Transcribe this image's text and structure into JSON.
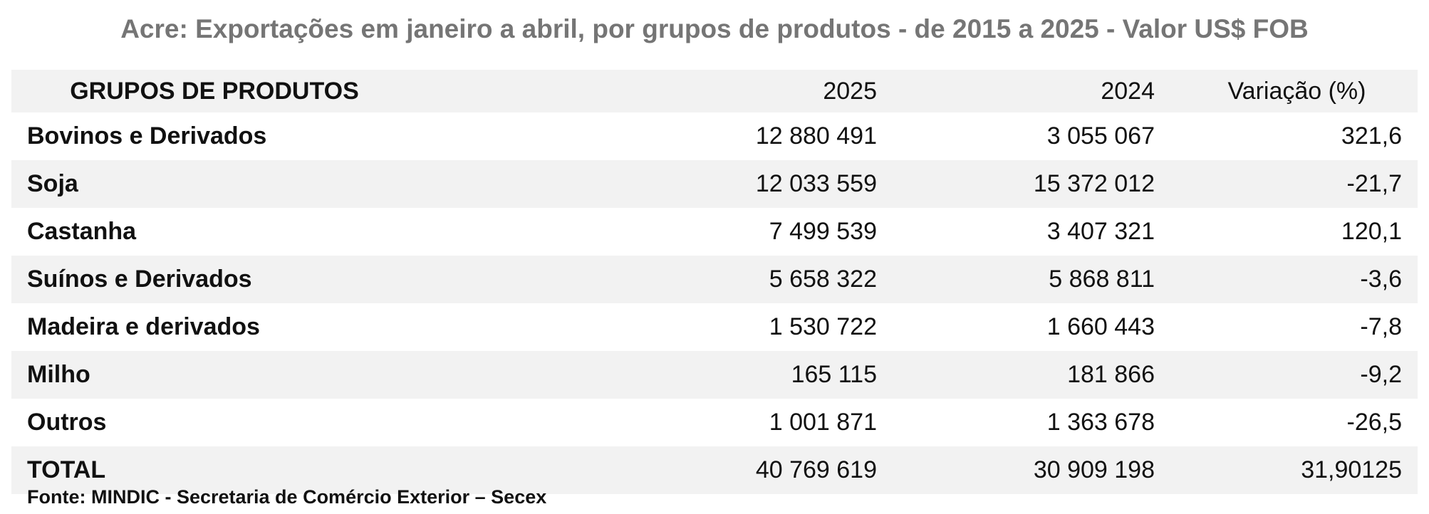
{
  "title": "Acre: Exportações em janeiro a abril, por grupos de produtos - de 2015 a 2025 - Valor US$ FOB",
  "table": {
    "headers": [
      "GRUPOS DE PRODUTOS",
      "2025",
      "2024",
      "Variação (%)"
    ],
    "rows": [
      [
        "Bovinos e Derivados",
        "12 880 491",
        "3 055 067",
        "321,6"
      ],
      [
        "Soja",
        "12 033 559",
        "15 372 012",
        "-21,7"
      ],
      [
        "Castanha",
        "7 499 539",
        "3 407 321",
        "120,1"
      ],
      [
        "Suínos e Derivados",
        "5 658 322",
        "5 868 811",
        "-3,6"
      ],
      [
        "Madeira e derivados",
        "1 530 722",
        "1 660 443",
        "-7,8"
      ],
      [
        "Milho",
        "165 115",
        "181 866",
        "-9,2"
      ],
      [
        "Outros",
        "1 001 871",
        "1 363 678",
        "-26,5"
      ]
    ],
    "total": [
      "TOTAL",
      "40 769 619",
      "30 909 198",
      "31,90125"
    ]
  },
  "source": "Fonte: MINDIC - Secretaria de Comércio Exterior – Secex",
  "colors": {
    "title": "#757575",
    "row_shade": "#f2f2f2",
    "text": "#111111"
  }
}
